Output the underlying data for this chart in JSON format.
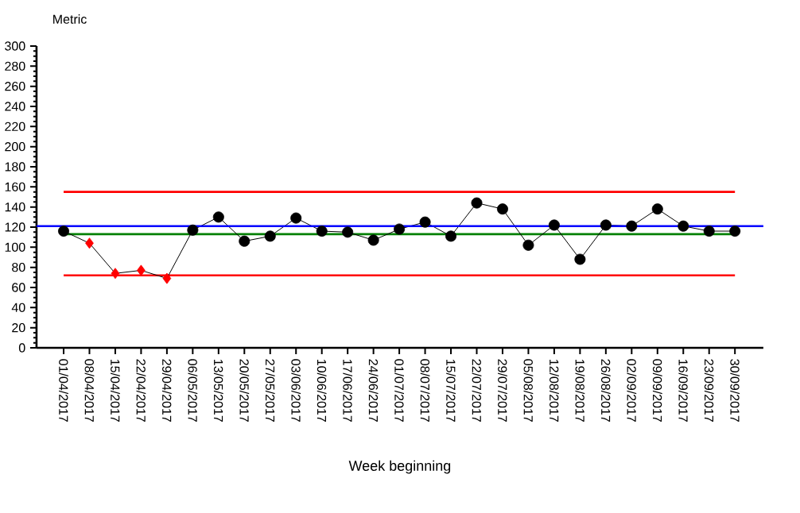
{
  "chart_data": {
    "type": "line",
    "ylabel": "Metric",
    "xlabel": "Week beginning",
    "categories": [
      "01/04/2017",
      "08/04/2017",
      "15/04/2017",
      "22/04/2017",
      "29/04/2017",
      "06/05/2017",
      "13/05/2017",
      "20/05/2017",
      "27/05/2017",
      "03/06/2017",
      "10/06/2017",
      "17/06/2017",
      "24/06/2017",
      "01/07/2017",
      "08/07/2017",
      "15/07/2017",
      "22/07/2017",
      "29/07/2017",
      "05/08/2017",
      "12/08/2017",
      "19/08/2017",
      "26/08/2017",
      "02/09/2017",
      "09/09/2017",
      "16/09/2017",
      "23/09/2017",
      "30/09/2017"
    ],
    "series": [
      {
        "color": "#ff0000",
        "marker": "none",
        "values": [
          155,
          155,
          155,
          155,
          155,
          155,
          155,
          155,
          155,
          155,
          155,
          155,
          155,
          155,
          155,
          155,
          155,
          155,
          155,
          155,
          155,
          155,
          155,
          155,
          155,
          155,
          155
        ]
      },
      {
        "color": "#ff0000",
        "marker": "none",
        "values": [
          72,
          72,
          72,
          72,
          72,
          72,
          72,
          72,
          72,
          72,
          72,
          72,
          72,
          72,
          72,
          72,
          72,
          72,
          72,
          72,
          72,
          72,
          72,
          72,
          72,
          72,
          72
        ]
      },
      {
        "color": "#008000",
        "marker": "none",
        "values": [
          113,
          113,
          113,
          113,
          113,
          113,
          113,
          113,
          113,
          113,
          113,
          113,
          113,
          113,
          113,
          113,
          113,
          113,
          113,
          113,
          113,
          113,
          113,
          113,
          113,
          113,
          113
        ]
      },
      {
        "color": "#000000",
        "marker": "none",
        "values": [
          116,
          104,
          74,
          77,
          69,
          117,
          130,
          106,
          111,
          129,
          116,
          115,
          107,
          118,
          125,
          111,
          144,
          138,
          102,
          122,
          88,
          122,
          121,
          138,
          121,
          116,
          116
        ]
      },
      {
        "type": "scatter",
        "color": "#000000",
        "marker": "circle",
        "values": [
          116,
          null,
          null,
          null,
          null,
          117,
          130,
          106,
          111,
          129,
          116,
          115,
          107,
          118,
          125,
          111,
          144,
          138,
          102,
          122,
          88,
          122,
          121,
          138,
          121,
          116,
          116
        ]
      },
      {
        "type": "scatter",
        "color": "#ff0000",
        "marker": "diamond",
        "values": [
          null,
          104,
          74,
          77,
          69,
          null,
          null,
          null,
          null,
          null,
          null,
          null,
          null,
          null,
          null,
          null,
          null,
          null,
          null,
          null,
          null,
          null,
          null,
          null,
          null,
          null,
          null
        ]
      }
    ],
    "ref_lines": [
      {
        "axis": "y",
        "value": 121,
        "color": "#0000ff"
      }
    ],
    "ylim": [
      0,
      300
    ],
    "yticks": [
      0,
      20,
      40,
      60,
      80,
      100,
      120,
      140,
      160,
      180,
      200,
      220,
      240,
      260,
      280,
      300
    ],
    "grid": false
  }
}
